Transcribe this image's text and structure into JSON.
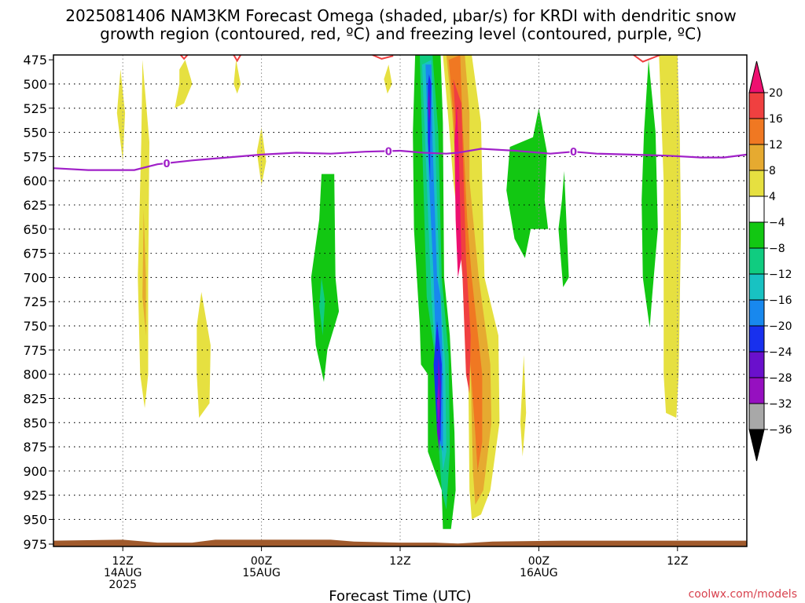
{
  "chart_data": {
    "type": "heatmap",
    "title_line1": "2025081406 NAM3KM Forecast Omega (shaded, μbar/s) for KRDI with dendritic snow",
    "title_line2": "growth region (contoured, red, ºC) and freezing level (contoured, purple, ºC)",
    "xlabel": "Forecast Time (UTC)",
    "credit": "coolwx.com/models",
    "x_ticks": [
      {
        "hour": 6,
        "label1": "12Z",
        "label2": "14AUG",
        "label3": "2025"
      },
      {
        "hour": 18,
        "label1": "00Z",
        "label2": "15AUG",
        "label3": ""
      },
      {
        "hour": 30,
        "label1": "12Z",
        "label2": "",
        "label3": ""
      },
      {
        "hour": 42,
        "label1": "00Z",
        "label2": "16AUG",
        "label3": ""
      },
      {
        "hour": 54,
        "label1": "12Z",
        "label2": "",
        "label3": ""
      }
    ],
    "x_range_hours": [
      0,
      60
    ],
    "y_ticks": [
      475,
      500,
      525,
      550,
      575,
      600,
      625,
      650,
      675,
      700,
      725,
      750,
      775,
      800,
      825,
      850,
      875,
      900,
      925,
      950,
      975
    ],
    "y_range_mb": [
      470,
      978
    ],
    "grid": true,
    "colorbar": {
      "labels": [
        "20",
        "16",
        "12",
        "8",
        "4",
        "−4",
        "−8",
        "−12",
        "−16",
        "−20",
        "−24",
        "−28",
        "−32",
        "−36"
      ],
      "colors": [
        "#ee1070",
        "#f04040",
        "#f07822",
        "#e6aa30",
        "#e6e040",
        "#ffffff",
        "#12c712",
        "#10cc80",
        "#18c2c2",
        "#1888ee",
        "#1830ee",
        "#6a10cc",
        "#9610c0",
        "#a8a8a8"
      ]
    },
    "freezing_level": {
      "label": "0",
      "points": [
        [
          0,
          587
        ],
        [
          3,
          589
        ],
        [
          7,
          589
        ],
        [
          9,
          583
        ],
        [
          12,
          579
        ],
        [
          15,
          576
        ],
        [
          18,
          573
        ],
        [
          21,
          571
        ],
        [
          24,
          572
        ],
        [
          27,
          570
        ],
        [
          30,
          569
        ],
        [
          32,
          571
        ],
        [
          34,
          572
        ],
        [
          35,
          571
        ],
        [
          37,
          567
        ],
        [
          40,
          569
        ],
        [
          43,
          572
        ],
        [
          45,
          570
        ],
        [
          47,
          572
        ],
        [
          50,
          573
        ],
        [
          53,
          574
        ],
        [
          56,
          576
        ],
        [
          58,
          576
        ],
        [
          60,
          573
        ]
      ]
    },
    "dgz_contours": [
      {
        "points": [
          [
            11,
            470
          ],
          [
            11.3,
            474
          ],
          [
            11.6,
            470
          ]
        ]
      },
      {
        "points": [
          [
            15.6,
            470
          ],
          [
            15.9,
            476
          ],
          [
            16.2,
            470
          ]
        ]
      },
      {
        "points": [
          [
            27.6,
            470
          ],
          [
            28.4,
            474
          ],
          [
            29.4,
            471
          ]
        ]
      },
      {
        "points": [
          [
            50.2,
            470
          ],
          [
            51,
            477
          ],
          [
            52.5,
            470
          ]
        ]
      }
    ],
    "omega_regions": [
      {
        "value": 4,
        "points": [
          [
            5.8,
            485
          ],
          [
            6.2,
            530
          ],
          [
            6,
            580
          ],
          [
            5.5,
            530
          ]
        ]
      },
      {
        "value": 4,
        "points": [
          [
            7.7,
            475
          ],
          [
            8.3,
            560
          ],
          [
            8.2,
            700
          ],
          [
            8.2,
            800
          ],
          [
            7.9,
            835
          ],
          [
            7.5,
            800
          ],
          [
            7.3,
            700
          ],
          [
            7.6,
            560
          ]
        ]
      },
      {
        "value": 4,
        "points": [
          [
            11.4,
            475
          ],
          [
            11.9,
            495
          ],
          [
            12,
            500
          ],
          [
            11.3,
            520
          ],
          [
            10.5,
            525
          ],
          [
            10.9,
            500
          ],
          [
            10.9,
            485
          ]
        ]
      },
      {
        "value": 4,
        "points": [
          [
            15.8,
            475
          ],
          [
            16.2,
            500
          ],
          [
            15.9,
            510
          ],
          [
            15.6,
            500
          ]
        ]
      },
      {
        "value": 4,
        "points": [
          [
            12.8,
            715
          ],
          [
            13.6,
            770
          ],
          [
            13.5,
            830
          ],
          [
            12.6,
            845
          ],
          [
            12.4,
            800
          ],
          [
            12.4,
            750
          ]
        ]
      },
      {
        "value": 4,
        "points": [
          [
            18,
            545
          ],
          [
            18.4,
            580
          ],
          [
            18,
            605
          ],
          [
            17.6,
            570
          ]
        ]
      },
      {
        "value": 4,
        "points": [
          [
            29,
            480
          ],
          [
            29.3,
            500
          ],
          [
            28.9,
            510
          ],
          [
            28.6,
            495
          ]
        ]
      },
      {
        "value": 4,
        "points": [
          [
            33.7,
            470
          ],
          [
            36.2,
            470
          ],
          [
            37,
            540
          ],
          [
            37.1,
            600
          ],
          [
            37.3,
            700
          ],
          [
            38.5,
            760
          ],
          [
            38.6,
            850
          ],
          [
            37.8,
            920
          ],
          [
            37,
            945
          ],
          [
            36.2,
            950
          ],
          [
            36,
            920
          ],
          [
            35.9,
            800
          ],
          [
            35.6,
            700
          ],
          [
            34.6,
            600
          ],
          [
            34.2,
            540
          ]
        ]
      },
      {
        "value": 4,
        "points": [
          [
            40.7,
            780
          ],
          [
            40.9,
            840
          ],
          [
            40.6,
            885
          ],
          [
            40.4,
            850
          ]
        ]
      },
      {
        "value": 4,
        "points": [
          [
            52.4,
            470
          ],
          [
            54,
            470
          ],
          [
            54.2,
            550
          ],
          [
            54.3,
            650
          ],
          [
            54.1,
            800
          ],
          [
            53.9,
            845
          ],
          [
            53,
            840
          ],
          [
            52.8,
            800
          ],
          [
            52.8,
            600
          ]
        ]
      },
      {
        "value": 8,
        "points": [
          [
            7.8,
            630
          ],
          [
            8,
            700
          ],
          [
            8,
            760
          ],
          [
            7.7,
            720
          ]
        ]
      },
      {
        "value": 8,
        "points": [
          [
            34,
            470
          ],
          [
            35.6,
            470
          ],
          [
            36,
            530
          ],
          [
            36,
            600
          ],
          [
            36.8,
            700
          ],
          [
            37.8,
            790
          ],
          [
            37.9,
            850
          ],
          [
            37.2,
            920
          ],
          [
            36.5,
            935
          ],
          [
            36.3,
            900
          ],
          [
            36.1,
            800
          ],
          [
            35.6,
            700
          ],
          [
            34.9,
            600
          ],
          [
            34.5,
            530
          ]
        ]
      },
      {
        "value": 12,
        "points": [
          [
            34.2,
            475
          ],
          [
            35.2,
            470
          ],
          [
            35.4,
            540
          ],
          [
            35.8,
            640
          ],
          [
            36.2,
            700
          ],
          [
            37.1,
            800
          ],
          [
            37.1,
            870
          ],
          [
            36.7,
            900
          ],
          [
            36.5,
            860
          ],
          [
            35.9,
            760
          ],
          [
            35.3,
            660
          ],
          [
            34.8,
            580
          ],
          [
            34.6,
            530
          ]
        ]
      },
      {
        "value": 16,
        "points": [
          [
            34.6,
            495
          ],
          [
            35.3,
            520
          ],
          [
            35.7,
            680
          ],
          [
            36.1,
            760
          ],
          [
            36,
            820
          ],
          [
            35.7,
            800
          ],
          [
            35.4,
            700
          ],
          [
            35,
            640
          ],
          [
            34.9,
            560
          ]
        ]
      },
      {
        "value": 20,
        "points": [
          [
            34.9,
            520
          ],
          [
            35.1,
            580
          ],
          [
            35.3,
            680
          ],
          [
            35,
            700
          ],
          [
            34.8,
            640
          ],
          [
            34.7,
            560
          ]
        ]
      },
      {
        "value": -4,
        "points": [
          [
            23.2,
            593
          ],
          [
            24.3,
            593
          ],
          [
            24.4,
            700
          ],
          [
            24.7,
            735
          ],
          [
            23.7,
            775
          ],
          [
            23.4,
            808
          ],
          [
            22.7,
            770
          ],
          [
            22.3,
            700
          ],
          [
            23,
            640
          ]
        ]
      },
      {
        "value": -4,
        "points": [
          [
            31.3,
            470
          ],
          [
            33.5,
            470
          ],
          [
            33.7,
            540
          ],
          [
            33.8,
            700
          ],
          [
            34.3,
            760
          ],
          [
            34.7,
            860
          ],
          [
            34.8,
            920
          ],
          [
            34.4,
            960
          ],
          [
            33.7,
            960
          ],
          [
            33.6,
            920
          ],
          [
            32.4,
            880
          ],
          [
            32.4,
            800
          ],
          [
            31.8,
            790
          ],
          [
            31.7,
            750
          ],
          [
            31.2,
            650
          ],
          [
            31.1,
            550
          ]
        ]
      },
      {
        "value": -4,
        "points": [
          [
            39.5,
            565
          ],
          [
            41.5,
            555
          ],
          [
            42,
            525
          ],
          [
            42.7,
            570
          ],
          [
            42.5,
            620
          ],
          [
            42.8,
            650
          ],
          [
            41.3,
            650
          ],
          [
            40.8,
            680
          ],
          [
            39.9,
            660
          ],
          [
            39.2,
            610
          ]
        ]
      },
      {
        "value": -4,
        "points": [
          [
            44.2,
            590
          ],
          [
            44.6,
            700
          ],
          [
            44.1,
            710
          ],
          [
            43.7,
            650
          ],
          [
            44,
            620
          ]
        ]
      },
      {
        "value": -4,
        "points": [
          [
            51.5,
            475
          ],
          [
            52.1,
            550
          ],
          [
            52.3,
            650
          ],
          [
            51.8,
            720
          ],
          [
            51.6,
            752
          ],
          [
            51,
            700
          ],
          [
            50.9,
            620
          ],
          [
            51.1,
            550
          ]
        ]
      },
      {
        "value": -8,
        "points": [
          [
            23.2,
            700
          ],
          [
            23.5,
            725
          ],
          [
            23.3,
            760
          ],
          [
            23,
            730
          ]
        ]
      },
      {
        "value": -8,
        "points": [
          [
            31.7,
            470
          ],
          [
            32.8,
            470
          ],
          [
            33.3,
            550
          ],
          [
            33.6,
            700
          ],
          [
            34.2,
            780
          ],
          [
            34.3,
            880
          ],
          [
            34,
            940
          ],
          [
            33.6,
            920
          ],
          [
            33.2,
            850
          ],
          [
            33,
            780
          ],
          [
            32.3,
            720
          ],
          [
            32,
            600
          ]
        ]
      },
      {
        "value": -12,
        "points": [
          [
            31.9,
            480
          ],
          [
            32.7,
            475
          ],
          [
            33,
            550
          ],
          [
            33.4,
            700
          ],
          [
            33.9,
            790
          ],
          [
            34,
            880
          ],
          [
            33.7,
            900
          ],
          [
            33.3,
            820
          ],
          [
            32.7,
            720
          ],
          [
            32.3,
            600
          ]
        ]
      },
      {
        "value": -16,
        "points": [
          [
            32.2,
            480
          ],
          [
            32.7,
            480
          ],
          [
            32.8,
            560
          ],
          [
            33.2,
            700
          ],
          [
            33.5,
            720
          ],
          [
            33.7,
            800
          ],
          [
            33.7,
            880
          ],
          [
            33.4,
            870
          ],
          [
            33.1,
            780
          ],
          [
            32.9,
            700
          ],
          [
            32.5,
            600
          ]
        ]
      },
      {
        "value": -20,
        "points": [
          [
            32.5,
            490
          ],
          [
            32.7,
            500
          ],
          [
            32.6,
            560
          ],
          [
            32.6,
            600
          ],
          [
            32.4,
            560
          ],
          [
            32.4,
            500
          ]
        ]
      },
      {
        "value": -20,
        "points": [
          [
            33.2,
            745
          ],
          [
            33.6,
            790
          ],
          [
            33.5,
            870
          ],
          [
            33.2,
            860
          ],
          [
            32.9,
            790
          ]
        ]
      },
      {
        "value": -24,
        "points": [
          [
            32.5,
            505
          ],
          [
            32.6,
            530
          ],
          [
            32.5,
            540
          ],
          [
            32.4,
            520
          ]
        ]
      },
      {
        "value": -24,
        "points": [
          [
            33.3,
            780
          ],
          [
            33.5,
            810
          ],
          [
            33.4,
            880
          ],
          [
            33.2,
            860
          ]
        ]
      },
      {
        "value": -28,
        "points": [
          [
            33.3,
            810
          ],
          [
            33.4,
            830
          ],
          [
            33.3,
            850
          ],
          [
            33.2,
            830
          ]
        ]
      }
    ],
    "ground": {
      "color": "#a05a2c",
      "points": [
        [
          0,
          972
        ],
        [
          6,
          971
        ],
        [
          9,
          974
        ],
        [
          12,
          974
        ],
        [
          14,
          971
        ],
        [
          18,
          971
        ],
        [
          24,
          971
        ],
        [
          26,
          973
        ],
        [
          30,
          974
        ],
        [
          33,
          974
        ],
        [
          35,
          975
        ],
        [
          38,
          973
        ],
        [
          44,
          972
        ],
        [
          50,
          972
        ],
        [
          55,
          972
        ],
        [
          60,
          972
        ]
      ]
    }
  }
}
